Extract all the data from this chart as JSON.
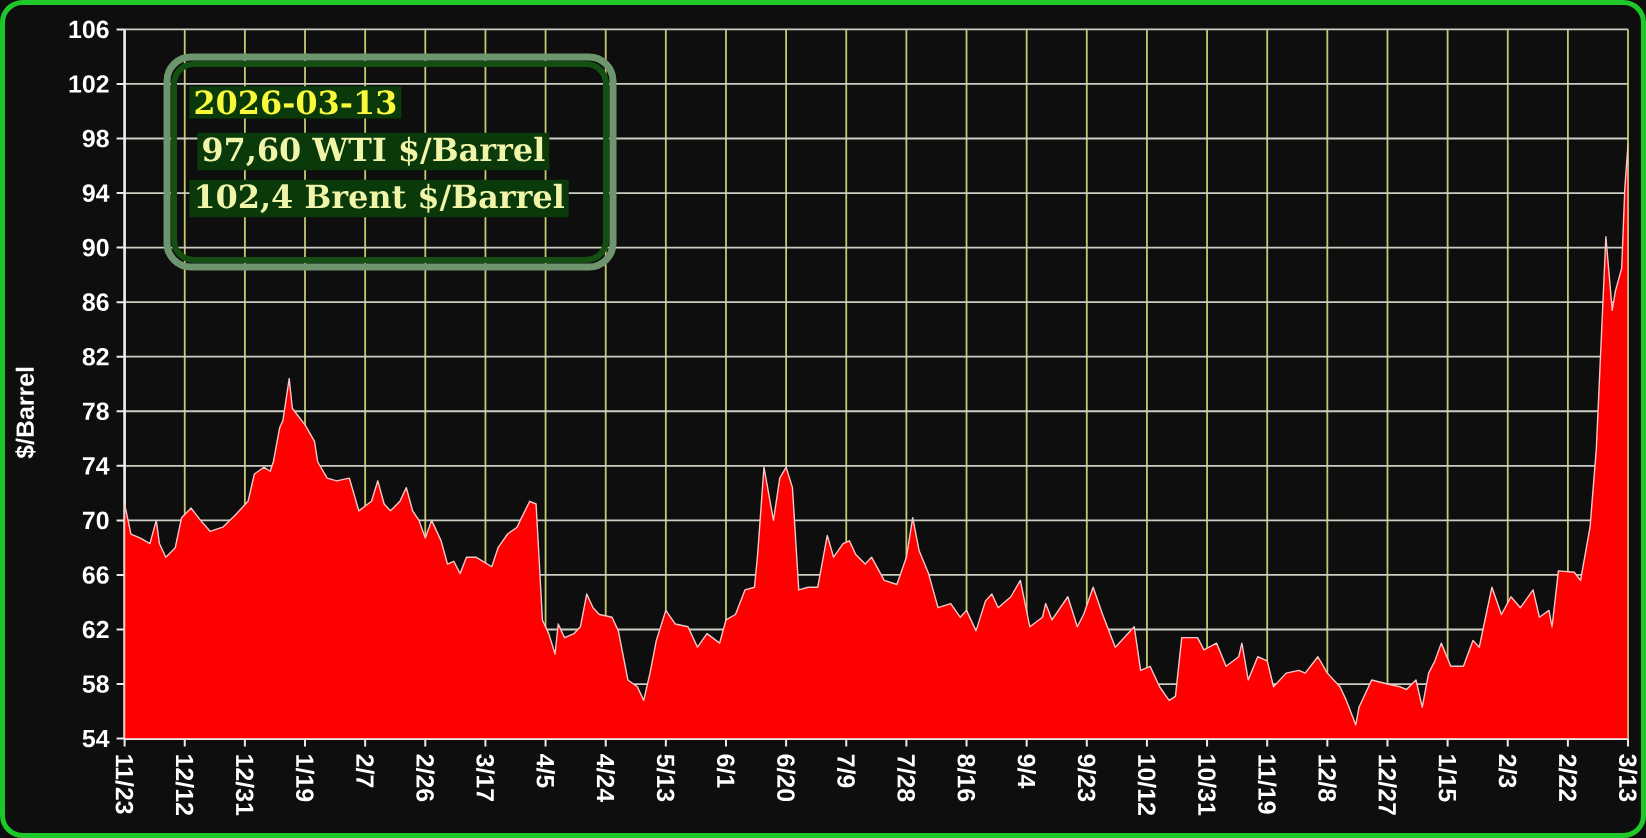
{
  "chart_data": {
    "type": "area",
    "ylabel": "$/Barrel",
    "annotations": [
      "2026-03-13",
      "97,60 WTI $/Barrel",
      "102,4 Brent $/Barrel"
    ],
    "color": "#ff0000",
    "grid": true,
    "xlim": [
      "2024-11-23",
      "2026-03-13"
    ],
    "ylim": [
      54,
      106
    ],
    "xticks": [
      {
        "value": "2024-11-23",
        "label": "11/23"
      },
      {
        "value": "2024-12-12",
        "label": "12/12"
      },
      {
        "value": "2024-12-31",
        "label": "12/31"
      },
      {
        "value": "2025-01-19",
        "label": "1/19"
      },
      {
        "value": "2025-02-07",
        "label": "2/7"
      },
      {
        "value": "2025-02-26",
        "label": "2/26"
      },
      {
        "value": "2025-03-17",
        "label": "3/17"
      },
      {
        "value": "2025-04-05",
        "label": "4/5"
      },
      {
        "value": "2025-04-24",
        "label": "4/24"
      },
      {
        "value": "2025-05-13",
        "label": "5/13"
      },
      {
        "value": "2025-06-01",
        "label": "6/1"
      },
      {
        "value": "2025-06-20",
        "label": "6/20"
      },
      {
        "value": "2025-07-09",
        "label": "7/9"
      },
      {
        "value": "2025-07-28",
        "label": "7/28"
      },
      {
        "value": "2025-08-16",
        "label": "8/16"
      },
      {
        "value": "2025-09-04",
        "label": "9/4"
      },
      {
        "value": "2025-09-23",
        "label": "9/23"
      },
      {
        "value": "2025-10-12",
        "label": "10/12"
      },
      {
        "value": "2025-10-31",
        "label": "10/31"
      },
      {
        "value": "2025-11-19",
        "label": "11/19"
      },
      {
        "value": "2025-12-08",
        "label": "12/8"
      },
      {
        "value": "2025-12-27",
        "label": "12/27"
      },
      {
        "value": "2026-01-15",
        "label": "1/15"
      },
      {
        "value": "2026-02-03",
        "label": "2/3"
      },
      {
        "value": "2026-02-22",
        "label": "2/22"
      },
      {
        "value": "2026-03-13",
        "label": "3/13"
      }
    ],
    "yticks": [
      54,
      58,
      62,
      66,
      70,
      74,
      78,
      82,
      86,
      90,
      94,
      98,
      102,
      106
    ],
    "x": [
      "2024-11-23",
      "2024-11-25",
      "2024-11-28",
      "2024-12-01",
      "2024-12-03",
      "2024-12-04",
      "2024-12-06",
      "2024-12-09",
      "2024-12-11",
      "2024-12-14",
      "2024-12-17",
      "2024-12-20",
      "2024-12-24",
      "2024-12-28",
      "2025-01-01",
      "2025-01-03",
      "2025-01-06",
      "2025-01-08",
      "2025-01-09",
      "2025-01-11",
      "2025-01-12",
      "2025-01-14",
      "2025-01-15",
      "2025-01-19",
      "2025-01-22",
      "2025-01-23",
      "2025-01-26",
      "2025-01-29",
      "2025-02-02",
      "2025-02-05",
      "2025-02-09",
      "2025-02-11",
      "2025-02-13",
      "2025-02-15",
      "2025-02-18",
      "2025-02-20",
      "2025-02-22",
      "2025-02-24",
      "2025-02-26",
      "2025-02-28",
      "2025-03-03",
      "2025-03-05",
      "2025-03-07",
      "2025-03-09",
      "2025-03-11",
      "2025-03-14",
      "2025-03-19",
      "2025-03-21",
      "2025-03-24",
      "2025-03-27",
      "2025-03-28",
      "2025-03-31",
      "2025-04-02",
      "2025-04-03",
      "2025-04-04",
      "2025-04-06",
      "2025-04-08",
      "2025-04-09",
      "2025-04-11",
      "2025-04-14",
      "2025-04-16",
      "2025-04-18",
      "2025-04-20",
      "2025-04-22",
      "2025-04-26",
      "2025-04-28",
      "2025-05-01",
      "2025-05-04",
      "2025-05-06",
      "2025-05-08",
      "2025-05-10",
      "2025-05-13",
      "2025-05-16",
      "2025-05-20",
      "2025-05-23",
      "2025-05-26",
      "2025-05-30",
      "2025-06-01",
      "2025-06-04",
      "2025-06-07",
      "2025-06-10",
      "2025-06-11",
      "2025-06-13",
      "2025-06-16",
      "2025-06-18",
      "2025-06-20",
      "2025-06-22",
      "2025-06-24",
      "2025-06-27",
      "2025-06-30",
      "2025-07-03",
      "2025-07-05",
      "2025-07-08",
      "2025-07-10",
      "2025-07-12",
      "2025-07-15",
      "2025-07-17",
      "2025-07-21",
      "2025-07-25",
      "2025-07-28",
      "2025-07-30",
      "2025-08-01",
      "2025-08-04",
      "2025-08-07",
      "2025-08-11",
      "2025-08-14",
      "2025-08-16",
      "2025-08-19",
      "2025-08-22",
      "2025-08-24",
      "2025-08-26",
      "2025-08-30",
      "2025-09-02",
      "2025-09-05",
      "2025-09-09",
      "2025-09-10",
      "2025-09-12",
      "2025-09-17",
      "2025-09-20",
      "2025-09-22",
      "2025-09-25",
      "2025-09-28",
      "2025-10-02",
      "2025-10-08",
      "2025-10-10",
      "2025-10-13",
      "2025-10-16",
      "2025-10-19",
      "2025-10-21",
      "2025-10-23",
      "2025-10-28",
      "2025-10-30",
      "2025-11-03",
      "2025-11-06",
      "2025-11-10",
      "2025-11-11",
      "2025-11-13",
      "2025-11-16",
      "2025-11-19",
      "2025-11-21",
      "2025-11-25",
      "2025-11-29",
      "2025-12-01",
      "2025-12-05",
      "2025-12-08",
      "2025-12-12",
      "2025-12-14",
      "2025-12-17",
      "2025-12-18",
      "2025-12-22",
      "2025-12-27",
      "2025-12-31",
      "2026-01-02",
      "2026-01-05",
      "2026-01-07",
      "2026-01-09",
      "2026-01-11",
      "2026-01-13",
      "2026-01-16",
      "2026-01-20",
      "2026-01-23",
      "2026-01-25",
      "2026-01-29",
      "2026-02-01",
      "2026-02-04",
      "2026-02-07",
      "2026-02-11",
      "2026-02-13",
      "2026-02-16",
      "2026-02-17",
      "2026-02-19",
      "2026-02-24",
      "2026-02-26",
      "2026-03-01",
      "2026-03-03",
      "2026-03-06",
      "2026-03-08",
      "2026-03-09",
      "2026-03-11",
      "2026-03-12",
      "2026-03-13"
    ],
    "values": [
      71.2,
      69.0,
      68.7,
      68.3,
      70.0,
      68.3,
      67.3,
      68.0,
      70.2,
      70.9,
      70.0,
      69.2,
      69.5,
      70.4,
      71.4,
      73.4,
      73.9,
      73.6,
      74.3,
      76.8,
      77.3,
      80.4,
      78.2,
      77.0,
      75.8,
      74.3,
      73.1,
      72.9,
      73.1,
      70.7,
      71.4,
      72.9,
      71.2,
      70.7,
      71.4,
      72.4,
      70.7,
      70.0,
      68.7,
      70.0,
      68.5,
      66.8,
      67.0,
      66.1,
      67.3,
      67.3,
      66.6,
      68.0,
      69.0,
      69.5,
      70.0,
      71.4,
      71.2,
      67.0,
      62.7,
      61.7,
      60.2,
      62.4,
      61.4,
      61.7,
      62.2,
      64.6,
      63.6,
      63.1,
      62.9,
      61.9,
      58.3,
      57.8,
      56.8,
      58.8,
      61.2,
      63.4,
      62.4,
      62.2,
      60.7,
      61.7,
      61.0,
      62.7,
      63.1,
      64.9,
      65.1,
      67.5,
      73.9,
      70.0,
      73.1,
      73.9,
      72.4,
      64.9,
      65.1,
      65.1,
      68.9,
      67.3,
      68.3,
      68.5,
      67.5,
      66.8,
      67.3,
      65.6,
      65.3,
      67.3,
      70.2,
      67.8,
      66.1,
      63.6,
      63.9,
      62.9,
      63.4,
      61.9,
      64.1,
      64.6,
      63.6,
      64.4,
      65.6,
      62.2,
      62.9,
      63.9,
      62.7,
      64.4,
      62.2,
      63.1,
      65.1,
      63.1,
      60.7,
      62.2,
      59.0,
      59.3,
      57.8,
      56.8,
      57.1,
      61.4,
      61.4,
      60.5,
      61.0,
      59.3,
      60.0,
      61.0,
      58.3,
      60.0,
      59.7,
      57.8,
      58.8,
      59.0,
      58.8,
      60.0,
      58.8,
      57.8,
      56.8,
      55.0,
      56.3,
      58.3,
      58.0,
      57.8,
      57.6,
      58.3,
      56.3,
      58.8,
      59.7,
      61.0,
      59.3,
      59.3,
      61.2,
      60.7,
      65.1,
      63.1,
      64.4,
      63.6,
      64.9,
      62.9,
      63.4,
      62.2,
      66.3,
      66.2,
      65.6,
      69.5,
      75.3,
      90.8,
      85.4,
      86.8,
      88.5,
      94.4,
      97.6
    ]
  }
}
